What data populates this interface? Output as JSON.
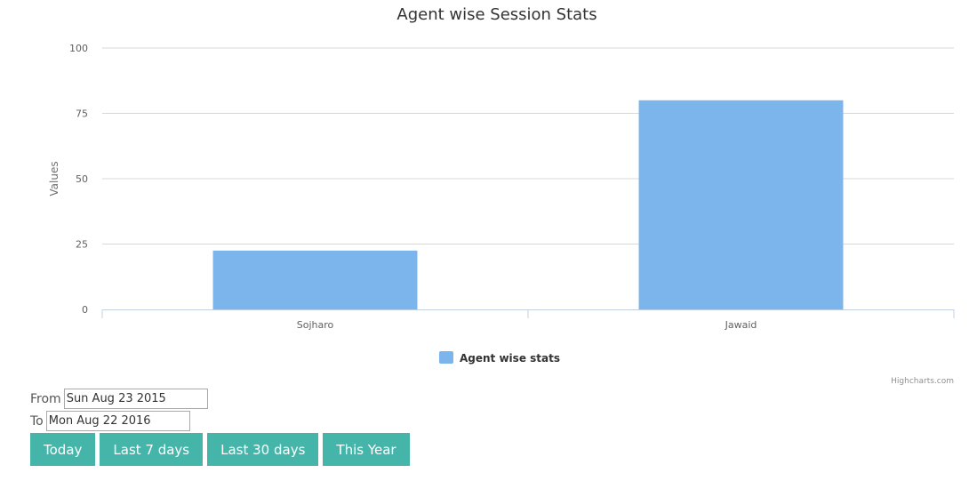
{
  "chart_data": {
    "type": "bar",
    "title": "Agent wise Session Stats",
    "categories": [
      "Sojharo",
      "Jawaid"
    ],
    "series": [
      {
        "name": "Agent wise stats",
        "values": [
          22.5,
          80
        ],
        "color": "#7cb5ec"
      }
    ],
    "ylabel": "Values",
    "xlabel": "",
    "ylim": [
      0,
      100
    ],
    "yticks": [
      0,
      25,
      50,
      75,
      100
    ],
    "grid": true,
    "legend_position": "bottom-center",
    "credits": "Highcharts.com"
  },
  "controls": {
    "from_label": "From",
    "from_value": "Sun Aug 23 2015",
    "to_label": "To",
    "to_value": "Mon Aug 22 2016",
    "buttons": [
      "Today",
      "Last 7 days",
      "Last 30 days",
      "This Year"
    ],
    "button_color": "#45b5aa"
  }
}
